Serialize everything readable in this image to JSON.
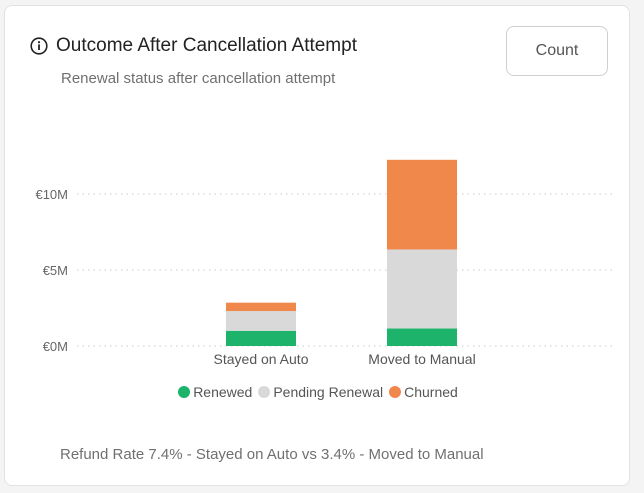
{
  "card": {
    "title": "Outcome After Cancellation Attempt",
    "subtitle": "Renewal status after cancellation attempt",
    "count_button_label": "Count",
    "footer": "Refund Rate 7.4% - Stayed on Auto vs 3.4% - Moved to Manual",
    "info_icon": "info-circle-icon"
  },
  "chart_data": {
    "type": "bar",
    "stacked": true,
    "categories": [
      "Stayed on Auto",
      "Moved to Manual"
    ],
    "series": [
      {
        "name": "Renewed",
        "color": "#1db36b",
        "values": [
          1.0,
          1.15
        ]
      },
      {
        "name": "Pending Renewal",
        "color": "#d9d9d9",
        "values": [
          1.3,
          5.2
        ]
      },
      {
        "name": "Churned",
        "color": "#f0884c",
        "values": [
          0.55,
          5.9
        ]
      }
    ],
    "y_ticks": [
      {
        "value": 0,
        "label": "€0M"
      },
      {
        "value": 5,
        "label": "€5M"
      },
      {
        "value": 10,
        "label": "€10M"
      }
    ],
    "ylim": [
      0,
      12.5
    ],
    "grid": true,
    "legend_position": "bottom"
  }
}
